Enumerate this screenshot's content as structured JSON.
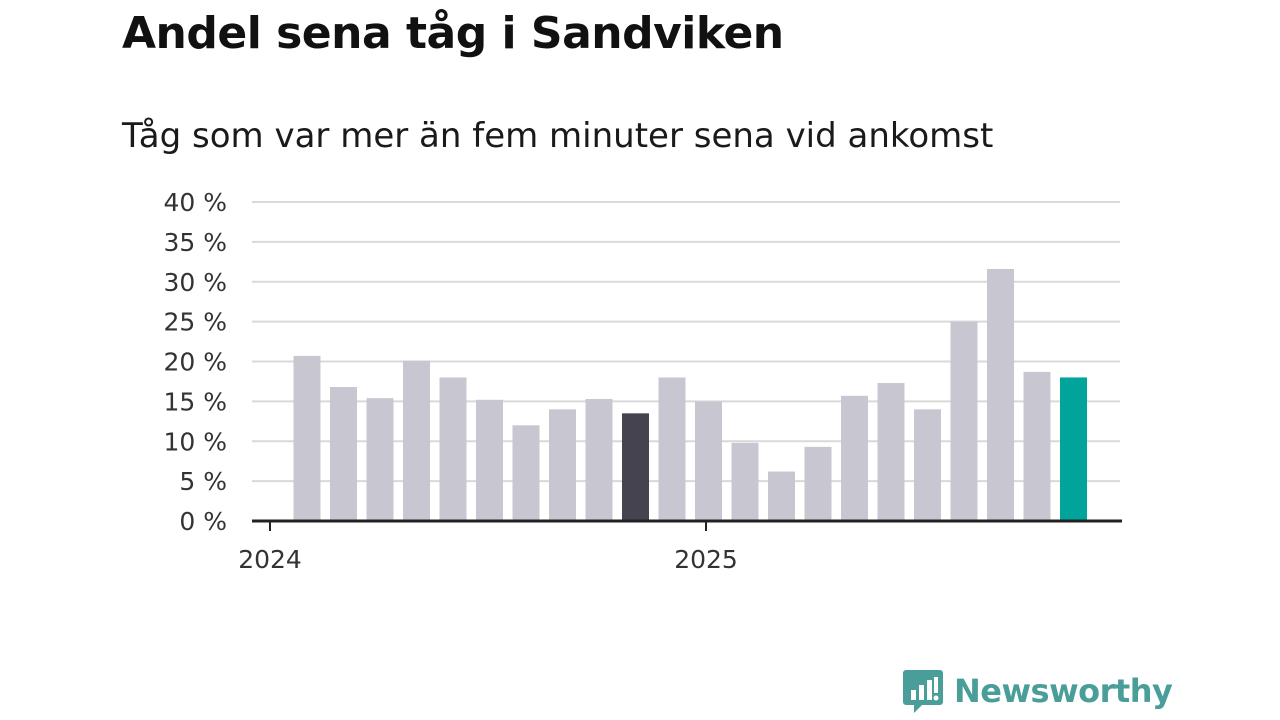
{
  "title": "Andel sena tåg i Sandviken",
  "subtitle": "Tåg som var mer än fem minuter sena vid ankomst",
  "brand": {
    "name": "Newsworthy",
    "color": "#4a9e9a",
    "icon": "newsworthy-logo-icon"
  },
  "colors": {
    "bar": "#c8c7d1",
    "highlight_dark": "#44434f",
    "highlight_teal": "#00a49a",
    "grid": "#d9d9d9",
    "axis": "#222222"
  },
  "chart_data": {
    "type": "bar",
    "title": "Andel sena tåg i Sandviken",
    "subtitle": "Tåg som var mer än fem minuter sena vid ankomst",
    "x": [
      "2024-01",
      "2024-02",
      "2024-03",
      "2024-04",
      "2024-05",
      "2024-06",
      "2024-07",
      "2024-08",
      "2024-09",
      "2024-10",
      "2024-11",
      "2024-12",
      "2025-01",
      "2025-02",
      "2025-03",
      "2025-04",
      "2025-05",
      "2025-06",
      "2025-07",
      "2025-08",
      "2025-09",
      "2025-10"
    ],
    "values": [
      20.7,
      16.8,
      15.4,
      20.1,
      18.0,
      15.2,
      12.0,
      14.0,
      15.3,
      13.5,
      18.0,
      15.0,
      9.8,
      6.2,
      9.3,
      15.7,
      17.3,
      14.0,
      25.0,
      31.6,
      18.7,
      18.0
    ],
    "highlight": {
      "dark_index": 9,
      "teal_index": 21
    },
    "ylim": [
      0,
      40
    ],
    "yticks": [
      0,
      5,
      10,
      15,
      20,
      25,
      30,
      35,
      40
    ],
    "ytick_labels": [
      "0 %",
      "5 %",
      "10 %",
      "15 %",
      "20 %",
      "25 %",
      "30 %",
      "35 %",
      "40 %"
    ],
    "xtick_labels": [
      "2024",
      "2025"
    ],
    "xtick_dates": [
      "2024-01",
      "2025-01"
    ],
    "grid": true,
    "xlabel": "",
    "ylabel": ""
  }
}
